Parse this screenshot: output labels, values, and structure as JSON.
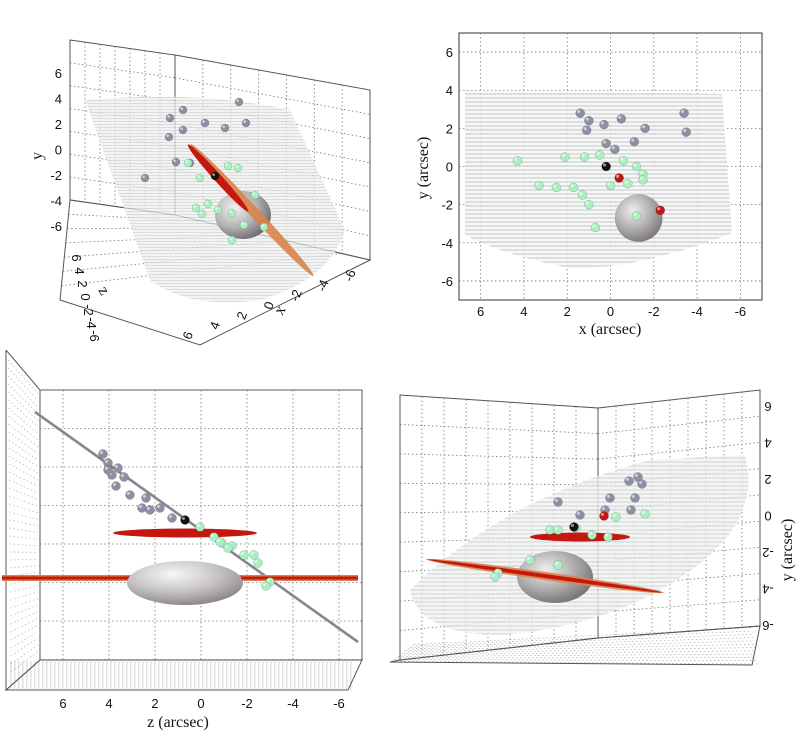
{
  "chart_data": [
    {
      "type": "scatter",
      "panel": "top-left",
      "view": "3d-perspective",
      "ylabel": "y",
      "xlabel": "x",
      "zlabel": "z",
      "y_ticks": [
        "6",
        "4",
        "2",
        "0",
        "-2",
        "-4",
        "-6"
      ],
      "x_ticks": [
        "6",
        "4",
        "2",
        "0",
        "-2",
        "-4",
        "-6"
      ],
      "z_ticks": [
        "6",
        "4",
        "2",
        "0",
        "-2",
        "-4",
        "-6"
      ],
      "ylim": [
        -7,
        7
      ],
      "grid": true
    },
    {
      "type": "scatter",
      "panel": "top-right",
      "view": "x-y projection",
      "xlabel": "x (arcsec)",
      "ylabel": "y (arcsec)",
      "x_ticks": [
        "6",
        "4",
        "2",
        "0",
        "-2",
        "-4",
        "-6"
      ],
      "y_ticks": [
        "6",
        "4",
        "2",
        "0",
        "-2",
        "-4",
        "-6"
      ],
      "xlim": [
        7,
        -7
      ],
      "ylim": [
        -7,
        7
      ],
      "grid": true,
      "gray_points": [
        {
          "x": 1.4,
          "y": 2.8
        },
        {
          "x": 1.0,
          "y": 2.4
        },
        {
          "x": 0.3,
          "y": 2.2
        },
        {
          "x": -0.5,
          "y": 2.5
        },
        {
          "x": -1.6,
          "y": 2.0
        },
        {
          "x": -3.4,
          "y": 2.8
        },
        {
          "x": -3.5,
          "y": 1.8
        },
        {
          "x": 1.1,
          "y": 1.9
        },
        {
          "x": 0.2,
          "y": 1.2
        },
        {
          "x": -1.1,
          "y": 1.3
        },
        {
          "x": -0.2,
          "y": 0.9
        }
      ],
      "green_points": [
        {
          "x": 4.3,
          "y": 0.3
        },
        {
          "x": 2.1,
          "y": 0.5
        },
        {
          "x": 1.2,
          "y": 0.5
        },
        {
          "x": 0.5,
          "y": 0.6
        },
        {
          "x": -0.6,
          "y": 0.3
        },
        {
          "x": -1.2,
          "y": 0.0
        },
        {
          "x": -1.5,
          "y": -0.4
        },
        {
          "x": 3.3,
          "y": -1.0
        },
        {
          "x": 2.5,
          "y": -1.1
        },
        {
          "x": 1.7,
          "y": -1.1
        },
        {
          "x": 1.3,
          "y": -1.5
        },
        {
          "x": 1.0,
          "y": -2.0
        },
        {
          "x": 0.0,
          "y": -1.0
        },
        {
          "x": -0.8,
          "y": -0.9
        },
        {
          "x": -1.5,
          "y": -0.7
        },
        {
          "x": 0.7,
          "y": -3.2
        },
        {
          "x": -1.2,
          "y": -2.6
        }
      ],
      "black_points": [
        {
          "x": 0.2,
          "y": 0.0
        }
      ],
      "red_points": [
        {
          "x": -0.4,
          "y": -0.6
        },
        {
          "x": -2.3,
          "y": -2.3
        }
      ],
      "sphere": {
        "x": -1.3,
        "y": -2.7,
        "r": 1.1
      },
      "surface_ylim": [
        -5.5,
        3.8
      ]
    },
    {
      "type": "scatter",
      "panel": "bottom-left",
      "view": "z-y projection",
      "xlabel": "z (arcsec)",
      "x_ticks": [
        "6",
        "4",
        "2",
        "0",
        "-2",
        "-4",
        "-6"
      ],
      "xlim": [
        7,
        -7
      ],
      "grid": true
    },
    {
      "type": "scatter",
      "panel": "bottom-right",
      "view": "3d-perspective",
      "ylabel": "y (arcsec)",
      "y_ticks": [
        "6",
        "4",
        "2",
        "0",
        "-2",
        "-4",
        "-6"
      ],
      "grid": true
    }
  ],
  "colors": {
    "gray_point": "#8e8fa3",
    "green_point": "#a9efc2",
    "red_point": "#c01510",
    "black_point": "#111111",
    "disk_red": "#c4170f",
    "disk_orange": "#d9834a",
    "sphere": "#a8a4a6"
  }
}
